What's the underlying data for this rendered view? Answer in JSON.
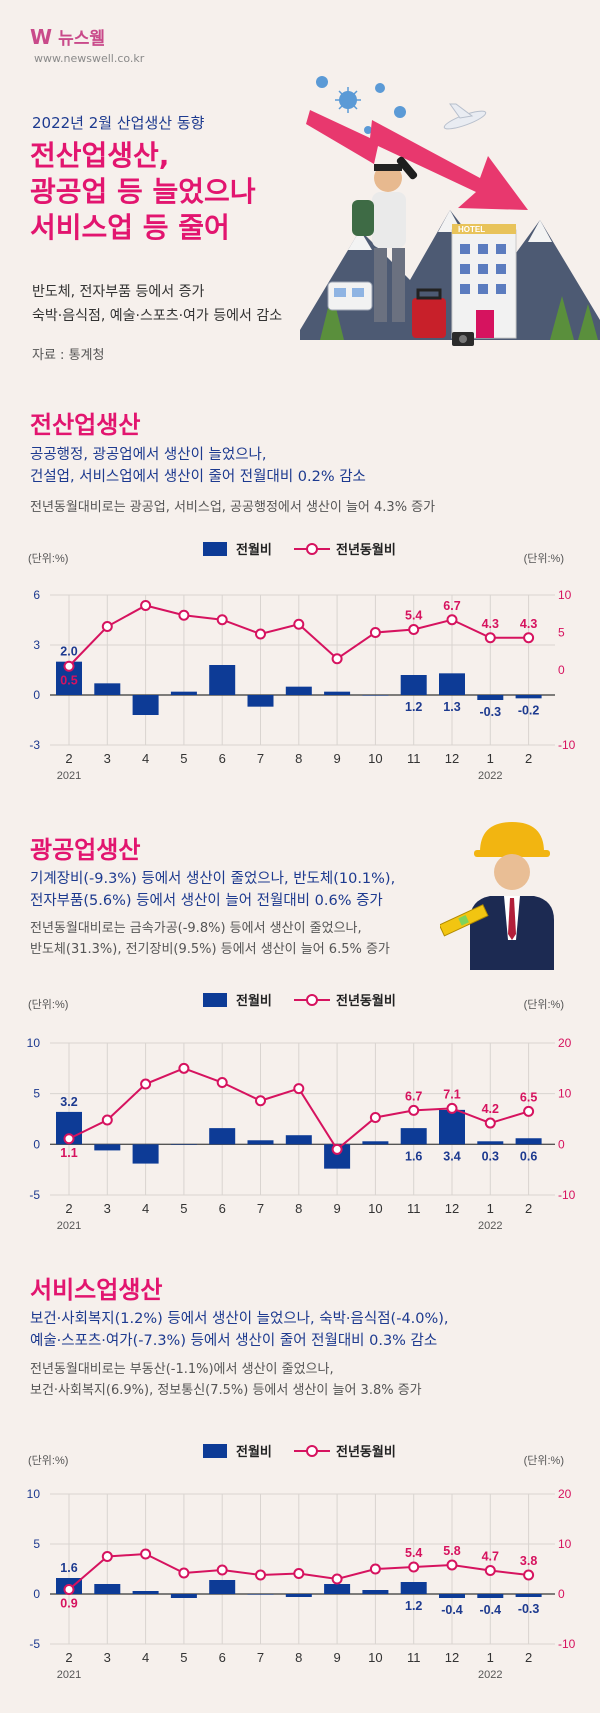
{
  "header": {
    "logo_mark": "W",
    "logo_name": "뉴스웰",
    "site": "www.newswell.co.kr",
    "subtitle": "2022년 2월 산업생산 동향",
    "title_lines": [
      "전산업생산,",
      "광공업 등 늘었으나",
      "서비스업 등 줄어"
    ],
    "intro_lines": [
      "반도체, 전자부품 등에서 증가",
      "숙박·음식점, 예술·스포츠·여가 등에서 감소"
    ],
    "source": "자료 : 통계청",
    "hotel_sign": "HOTEL"
  },
  "colors": {
    "bar": "#0d3b96",
    "line": "#d6135f",
    "title": "#e2156f",
    "desc": "#1d3a8f"
  },
  "sections": [
    {
      "title": "전산업생산",
      "desc_lines": [
        "공공행정, 광공업에서 생산이 늘었으나,",
        "건설업, 서비스업에서 생산이 줄어 전월대비 0.2% 감소"
      ],
      "note_lines": [
        "전년동월대비로는 광공업, 서비스업, 공공행정에서 생산이 늘어 4.3% 증가"
      ]
    },
    {
      "title": "광공업생산",
      "desc_lines": [
        "기계장비(-9.3%) 등에서 생산이 줄었으나, 반도체(10.1%),",
        "전자부품(5.6%) 등에서 생산이 늘어 전월대비 0.6% 증가"
      ],
      "note_lines": [
        "전년동월대비로는 금속가공(-9.8%) 등에서 생산이 줄었으나,",
        "반도체(31.3%), 전기장비(9.5%) 등에서 생산이 늘어 6.5% 증가"
      ]
    },
    {
      "title": "서비스업생산",
      "desc_lines": [
        "보건·사회복지(1.2%) 등에서 생산이 늘었으나, 숙박·음식점(-4.0%),",
        "예술·스포츠·여가(-7.3%) 등에서 생산이 줄어 전월대비 0.3% 감소"
      ],
      "note_lines": [
        "전년동월대비로는 부동산(-1.1%)에서 생산이 줄었으나,",
        "보건·사회복지(6.9%), 정보통신(7.5%) 등에서 생산이 늘어 3.8% 증가"
      ]
    }
  ],
  "chart_data": [
    {
      "type": "bar",
      "categories": [
        "2",
        "3",
        "4",
        "5",
        "6",
        "7",
        "8",
        "9",
        "10",
        "11",
        "12",
        "1",
        "2"
      ],
      "year_labels": [
        "2021",
        "2022"
      ],
      "unit_left": "(단위:%)",
      "unit_right": "(단위:%)",
      "legend_placement": "top",
      "series": [
        {
          "name": "전월비",
          "type": "bar",
          "axis": "left",
          "values": [
            2.0,
            0.7,
            -1.2,
            0.2,
            1.8,
            -0.7,
            0.5,
            0.2,
            0.0,
            1.2,
            1.3,
            -0.3,
            -0.2
          ],
          "labels": [
            "2.0",
            "",
            "",
            "",
            "",
            "",
            "",
            "",
            "",
            "1.2",
            "1.3",
            "-0.3",
            "-0.2"
          ]
        },
        {
          "name": "전년동월비",
          "type": "line",
          "axis": "right",
          "values": [
            0.5,
            5.8,
            8.6,
            7.3,
            6.7,
            4.8,
            6.1,
            1.5,
            5.0,
            5.4,
            6.7,
            4.3,
            4.3
          ],
          "labels": [
            "0.5",
            "",
            "",
            "",
            "",
            "",
            "",
            "",
            "",
            "5.4",
            "6.7",
            "4.3",
            "4.3"
          ]
        }
      ],
      "ylim_left": [
        -3,
        6
      ],
      "yticks_left": [
        -3,
        0,
        3,
        6
      ],
      "ylim_right": [
        -10,
        10
      ],
      "yticks_right": [
        -10,
        0,
        5,
        10
      ]
    },
    {
      "type": "bar",
      "categories": [
        "2",
        "3",
        "4",
        "5",
        "6",
        "7",
        "8",
        "9",
        "10",
        "11",
        "12",
        "1",
        "2"
      ],
      "year_labels": [
        "2021",
        "2022"
      ],
      "unit_left": "(단위:%)",
      "unit_right": "(단위:%)",
      "legend_placement": "top",
      "series": [
        {
          "name": "전월비",
          "type": "bar",
          "axis": "left",
          "values": [
            3.2,
            -0.6,
            -1.9,
            0.0,
            1.6,
            0.4,
            0.9,
            -2.4,
            0.3,
            1.6,
            3.4,
            0.3,
            0.6
          ],
          "labels": [
            "3.2",
            "",
            "",
            "",
            "",
            "",
            "",
            "",
            "",
            "1.6",
            "3.4",
            "0.3",
            "0.6"
          ]
        },
        {
          "name": "전년동월비",
          "type": "line",
          "axis": "right",
          "values": [
            1.1,
            4.8,
            11.9,
            15.0,
            12.2,
            8.6,
            11.0,
            -1.0,
            5.3,
            6.7,
            7.1,
            4.2,
            6.5
          ],
          "labels": [
            "1.1",
            "",
            "",
            "",
            "",
            "",
            "",
            "",
            "",
            "6.7",
            "7.1",
            "4.2",
            "6.5"
          ]
        }
      ],
      "ylim_left": [
        -5,
        10
      ],
      "yticks_left": [
        -5,
        0,
        5,
        10
      ],
      "ylim_right": [
        -10,
        20
      ],
      "yticks_right": [
        -10,
        0,
        10,
        20
      ]
    },
    {
      "type": "bar",
      "categories": [
        "2",
        "3",
        "4",
        "5",
        "6",
        "7",
        "8",
        "9",
        "10",
        "11",
        "12",
        "1",
        "2"
      ],
      "year_labels": [
        "2021",
        "2022"
      ],
      "unit_left": "(단위:%)",
      "unit_right": "(단위:%)",
      "legend_placement": "top",
      "series": [
        {
          "name": "전월비",
          "type": "bar",
          "axis": "left",
          "values": [
            1.6,
            1.0,
            0.3,
            -0.4,
            1.4,
            0.0,
            -0.3,
            1.0,
            0.4,
            1.2,
            -0.4,
            -0.4,
            -0.3
          ],
          "labels": [
            "1.6",
            "",
            "",
            "",
            "",
            "",
            "",
            "",
            "",
            "1.2",
            "-0.4",
            "-0.4",
            "-0.3"
          ]
        },
        {
          "name": "전년동월비",
          "type": "line",
          "axis": "right",
          "values": [
            0.9,
            7.5,
            8.0,
            4.2,
            4.8,
            3.8,
            4.1,
            3.0,
            5.0,
            5.4,
            5.8,
            4.7,
            3.8
          ],
          "labels": [
            "0.9",
            "",
            "",
            "",
            "",
            "",
            "",
            "",
            "",
            "5.4",
            "5.8",
            "4.7",
            "3.8"
          ]
        }
      ],
      "ylim_left": [
        -5,
        10
      ],
      "yticks_left": [
        -5,
        0,
        5,
        10
      ],
      "ylim_right": [
        -10,
        20
      ],
      "yticks_right": [
        -10,
        0,
        10,
        20
      ]
    }
  ]
}
